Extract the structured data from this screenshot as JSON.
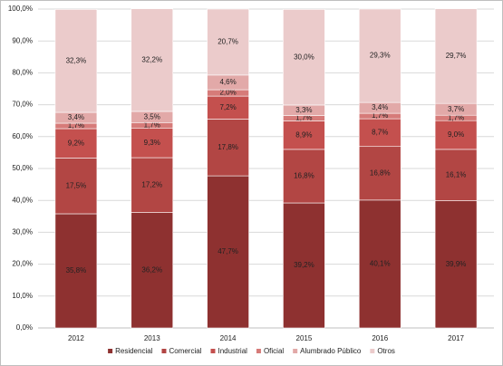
{
  "chart_data": {
    "type": "stacked_bar",
    "categories": [
      "2012",
      "2013",
      "2014",
      "2015",
      "2016",
      "2017"
    ],
    "series": [
      {
        "name": "Residencial",
        "color": "#8e3130",
        "values": [
          35.8,
          36.2,
          47.7,
          39.2,
          40.1,
          39.9
        ],
        "value_labels": [
          "35,8%",
          "36,2%",
          "47,7%",
          "39,2%",
          "40,1%",
          "39,9%"
        ]
      },
      {
        "name": "Comercial",
        "color": "#b24644",
        "values": [
          17.5,
          17.2,
          17.8,
          16.8,
          16.8,
          16.1
        ],
        "value_labels": [
          "17,5%",
          "17,2%",
          "17,8%",
          "16,8%",
          "16,8%",
          "16,1%"
        ]
      },
      {
        "name": "Industrial",
        "color": "#c4504e",
        "values": [
          9.2,
          9.3,
          7.2,
          8.9,
          8.7,
          9.0
        ],
        "value_labels": [
          "9,2%",
          "9,3%",
          "7,2%",
          "8,9%",
          "8,7%",
          "9,0%"
        ]
      },
      {
        "name": "Oficial",
        "color": "#d67b79",
        "values": [
          1.7,
          1.7,
          2.0,
          1.7,
          1.7,
          1.7
        ],
        "value_labels": [
          "1,7%",
          "1,7%",
          "2,0%",
          "1,7%",
          "1,7%",
          "1,7%"
        ]
      },
      {
        "name": "Alumbrado Público",
        "color": "#e2a9a8",
        "values": [
          3.4,
          3.5,
          4.6,
          3.3,
          3.4,
          3.7
        ],
        "value_labels": [
          "3,4%",
          "3,5%",
          "4,6%",
          "3,3%",
          "3,4%",
          "3,7%"
        ]
      },
      {
        "name": "Otros",
        "color": "#ebcbcb",
        "values": [
          32.3,
          32.2,
          20.7,
          30.0,
          29.3,
          29.7
        ],
        "value_labels": [
          "32,3%",
          "32,2%",
          "20,7%",
          "30,0%",
          "29,3%",
          "29,7%"
        ]
      }
    ],
    "ylim": [
      0,
      100
    ],
    "yticks": [
      {
        "value": 0,
        "label": "0,0%"
      },
      {
        "value": 10,
        "label": "10,0%"
      },
      {
        "value": 20,
        "label": "20,0%"
      },
      {
        "value": 30,
        "label": "30,0%"
      },
      {
        "value": 40,
        "label": "40,0%"
      },
      {
        "value": 50,
        "label": "50,0%"
      },
      {
        "value": 60,
        "label": "60,0%"
      },
      {
        "value": 70,
        "label": "70,0%"
      },
      {
        "value": 80,
        "label": "80,0%"
      },
      {
        "value": 90,
        "label": "90,0%"
      },
      {
        "value": 100,
        "label": "100,0%"
      }
    ],
    "grid": true
  }
}
